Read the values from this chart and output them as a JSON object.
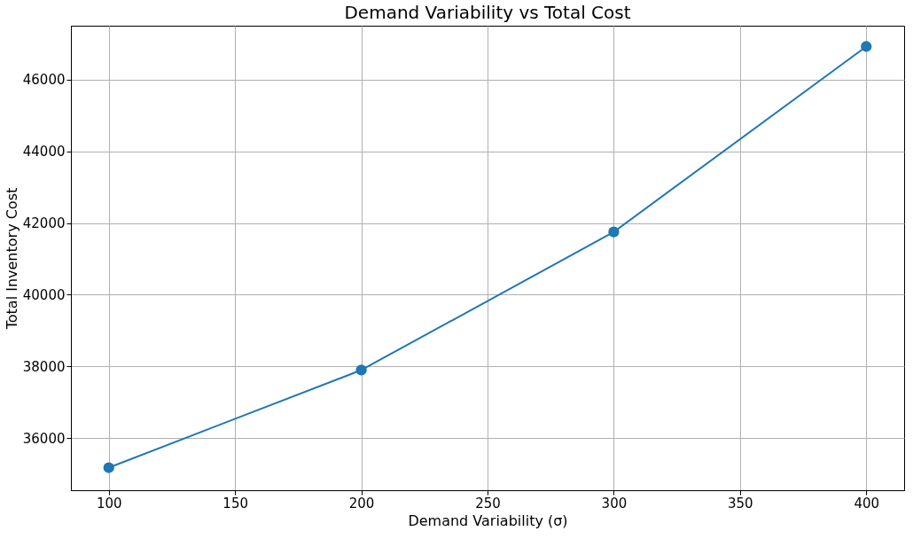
{
  "chart_data": {
    "type": "line",
    "title": "Demand Variability vs Total Cost",
    "xlabel": "Demand Variability (σ)",
    "ylabel": "Total Inventory Cost",
    "x": [
      100,
      200,
      300,
      400
    ],
    "series": [
      {
        "color": "#1f77b4",
        "values": [
          35180,
          37900,
          41750,
          46920
        ]
      }
    ],
    "xlim": [
      85,
      415
    ],
    "xticks": [
      100,
      150,
      200,
      250,
      300,
      350,
      400
    ],
    "ylim": [
      34550,
      47500
    ],
    "yticks": [
      36000,
      38000,
      40000,
      42000,
      44000,
      46000
    ],
    "grid": true,
    "marker": "circle",
    "line_style": "solid"
  }
}
